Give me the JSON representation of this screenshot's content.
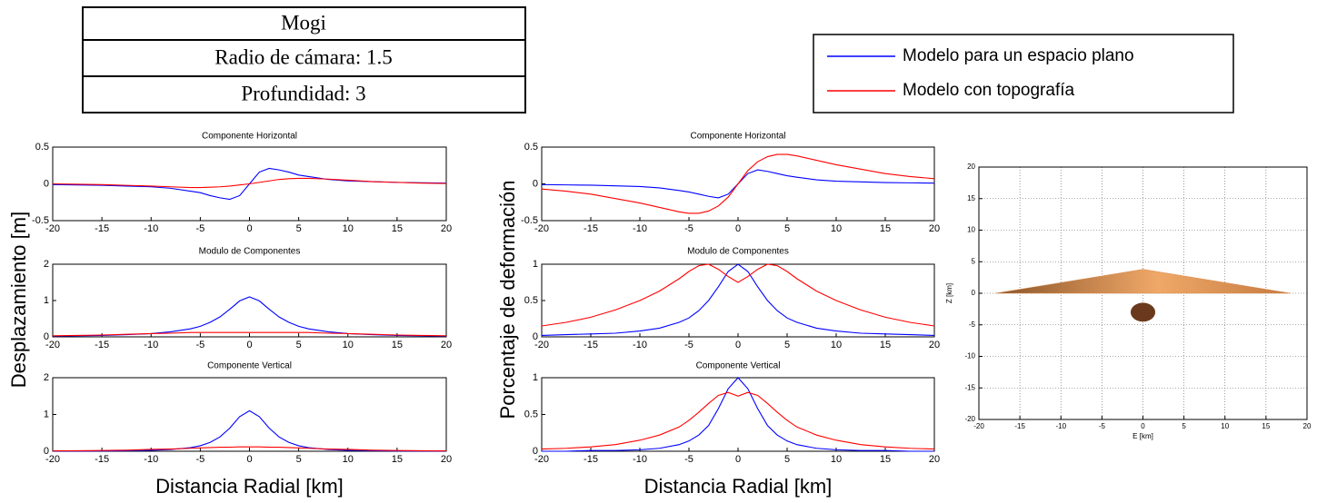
{
  "table": {
    "rows": [
      "Mogi",
      "Radio de cámara: 1.5",
      "Profundidad: 3"
    ]
  },
  "chart_data": [
    {
      "type": "line",
      "title": "Componente Horizontal",
      "x": [
        -20,
        -17.5,
        -15,
        -12.5,
        -10,
        -8,
        -6,
        -5,
        -4,
        -3,
        -2,
        -1,
        0,
        1,
        2,
        3,
        4,
        5,
        6,
        8,
        10,
        12.5,
        15,
        17.5,
        20
      ],
      "series": [
        {
          "name": "Modelo para un espacio plano",
          "color": "#0000ff",
          "values": [
            -0.01,
            -0.015,
            -0.02,
            -0.03,
            -0.04,
            -0.06,
            -0.1,
            -0.12,
            -0.16,
            -0.19,
            -0.21,
            -0.16,
            0,
            0.16,
            0.21,
            0.19,
            0.16,
            0.12,
            0.1,
            0.06,
            0.04,
            0.03,
            0.02,
            0.015,
            0.01
          ]
        },
        {
          "name": "Modelo con topografía",
          "color": "#ff0000",
          "values": [
            0,
            -0.005,
            -0.01,
            -0.02,
            -0.03,
            -0.04,
            -0.05,
            -0.05,
            -0.045,
            -0.04,
            -0.03,
            -0.015,
            0,
            0.02,
            0.04,
            0.06,
            0.07,
            0.075,
            0.075,
            0.065,
            0.05,
            0.03,
            0.02,
            0.01,
            0.005
          ]
        }
      ],
      "xlim": [
        -20,
        20
      ],
      "ylim": [
        -0.5,
        0.5
      ],
      "xticks": [
        -20,
        -15,
        -10,
        -5,
        0,
        5,
        10,
        15,
        20
      ],
      "yticks": [
        -0.5,
        0,
        0.5
      ]
    },
    {
      "type": "line",
      "title": "Modulo de Componentes",
      "ylabel": "Desplazamiento [m]",
      "x": [
        -20,
        -17.5,
        -15,
        -12.5,
        -10,
        -8,
        -6,
        -5,
        -4,
        -3,
        -2,
        -1,
        0,
        1,
        2,
        3,
        4,
        5,
        6,
        8,
        10,
        12.5,
        15,
        17.5,
        20
      ],
      "series": [
        {
          "color": "#0000ff",
          "values": [
            0.02,
            0.03,
            0.04,
            0.06,
            0.09,
            0.14,
            0.22,
            0.29,
            0.4,
            0.55,
            0.76,
            0.99,
            1.1,
            0.99,
            0.76,
            0.55,
            0.4,
            0.29,
            0.22,
            0.14,
            0.09,
            0.06,
            0.04,
            0.03,
            0.02
          ]
        },
        {
          "color": "#ff0000",
          "values": [
            0.03,
            0.04,
            0.05,
            0.07,
            0.09,
            0.1,
            0.12,
            0.12,
            0.12,
            0.12,
            0.12,
            0.12,
            0.12,
            0.12,
            0.12,
            0.12,
            0.12,
            0.12,
            0.12,
            0.1,
            0.09,
            0.07,
            0.05,
            0.04,
            0.03
          ]
        }
      ],
      "xlim": [
        -20,
        20
      ],
      "ylim": [
        0,
        2
      ],
      "xticks": [
        -20,
        -15,
        -10,
        -5,
        0,
        5,
        10,
        15,
        20
      ],
      "yticks": [
        0,
        1,
        2
      ]
    },
    {
      "type": "line",
      "title": "Componente Vertical",
      "xlabel": "Distancia Radial [km]",
      "x": [
        -20,
        -17.5,
        -15,
        -12.5,
        -10,
        -8,
        -6,
        -5,
        -4,
        -3,
        -2,
        -1,
        0,
        1,
        2,
        3,
        4,
        5,
        6,
        8,
        10,
        12.5,
        15,
        17.5,
        20
      ],
      "series": [
        {
          "color": "#0000ff",
          "values": [
            0.004,
            0.005,
            0.008,
            0.014,
            0.026,
            0.048,
            0.098,
            0.15,
            0.24,
            0.39,
            0.63,
            0.94,
            1.1,
            0.94,
            0.63,
            0.39,
            0.24,
            0.15,
            0.098,
            0.048,
            0.026,
            0.014,
            0.008,
            0.005,
            0.004
          ]
        },
        {
          "color": "#ff0000",
          "values": [
            0.01,
            0.015,
            0.02,
            0.03,
            0.05,
            0.06,
            0.08,
            0.09,
            0.1,
            0.11,
            0.11,
            0.12,
            0.12,
            0.12,
            0.11,
            0.11,
            0.1,
            0.09,
            0.08,
            0.06,
            0.05,
            0.03,
            0.02,
            0.015,
            0.01
          ]
        }
      ],
      "xlim": [
        -20,
        20
      ],
      "ylim": [
        0,
        2
      ],
      "xticks": [
        -20,
        -15,
        -10,
        -5,
        0,
        5,
        10,
        15,
        20
      ],
      "yticks": [
        0,
        1,
        2
      ]
    },
    {
      "type": "line",
      "title": "Componente Horizontal",
      "x": [
        -20,
        -17.5,
        -15,
        -12.5,
        -10,
        -8,
        -6,
        -5,
        -4,
        -3,
        -2,
        -1,
        0,
        1,
        2,
        3,
        4,
        5,
        6,
        8,
        10,
        12.5,
        15,
        17.5,
        20
      ],
      "series": [
        {
          "color": "#0000ff",
          "values": [
            -0.01,
            -0.014,
            -0.018,
            -0.027,
            -0.036,
            -0.055,
            -0.09,
            -0.11,
            -0.14,
            -0.17,
            -0.19,
            -0.14,
            0,
            0.14,
            0.19,
            0.17,
            0.14,
            0.11,
            0.09,
            0.055,
            0.036,
            0.027,
            0.018,
            0.014,
            0.01
          ]
        },
        {
          "color": "#ff0000",
          "values": [
            -0.07,
            -0.1,
            -0.14,
            -0.2,
            -0.26,
            -0.32,
            -0.38,
            -0.4,
            -0.4,
            -0.37,
            -0.3,
            -0.18,
            0,
            0.18,
            0.3,
            0.37,
            0.4,
            0.4,
            0.38,
            0.32,
            0.26,
            0.2,
            0.14,
            0.1,
            0.07
          ]
        }
      ],
      "xlim": [
        -20,
        20
      ],
      "ylim": [
        -0.5,
        0.5
      ],
      "xticks": [
        -20,
        -15,
        -10,
        -5,
        0,
        5,
        10,
        15,
        20
      ],
      "yticks": [
        -0.5,
        0,
        0.5
      ]
    },
    {
      "type": "line",
      "title": "Modulo de Componentes",
      "ylabel": "Porcentaje de deformación",
      "x": [
        -20,
        -17.5,
        -15,
        -12.5,
        -10,
        -8,
        -6,
        -5,
        -4,
        -3,
        -2,
        -1,
        0,
        1,
        2,
        3,
        4,
        5,
        6,
        8,
        10,
        12.5,
        15,
        17.5,
        20
      ],
      "series": [
        {
          "color": "#0000ff",
          "values": [
            0.02,
            0.03,
            0.04,
            0.05,
            0.08,
            0.12,
            0.2,
            0.26,
            0.36,
            0.5,
            0.69,
            0.9,
            1,
            0.9,
            0.69,
            0.5,
            0.36,
            0.26,
            0.2,
            0.12,
            0.08,
            0.05,
            0.04,
            0.03,
            0.02
          ]
        },
        {
          "color": "#ff0000",
          "values": [
            0.15,
            0.2,
            0.27,
            0.37,
            0.5,
            0.63,
            0.8,
            0.9,
            0.98,
            1,
            0.93,
            0.83,
            0.75,
            0.83,
            0.93,
            1,
            0.98,
            0.9,
            0.8,
            0.63,
            0.5,
            0.37,
            0.27,
            0.2,
            0.15
          ]
        }
      ],
      "xlim": [
        -20,
        20
      ],
      "ylim": [
        0,
        1
      ],
      "xticks": [
        -20,
        -15,
        -10,
        -5,
        0,
        5,
        10,
        15,
        20
      ],
      "yticks": [
        0,
        0.5,
        1
      ]
    },
    {
      "type": "line",
      "title": "Componente Vertical",
      "xlabel": "Distancia Radial [km]",
      "x": [
        -20,
        -17.5,
        -15,
        -12.5,
        -10,
        -8,
        -6,
        -5,
        -4,
        -3,
        -2,
        -1,
        0,
        1,
        2,
        3,
        4,
        5,
        6,
        8,
        10,
        12.5,
        15,
        17.5,
        20
      ],
      "series": [
        {
          "color": "#0000ff",
          "values": [
            0,
            0,
            0.01,
            0.01,
            0.02,
            0.04,
            0.09,
            0.14,
            0.22,
            0.35,
            0.58,
            0.85,
            1,
            0.85,
            0.58,
            0.35,
            0.22,
            0.14,
            0.09,
            0.04,
            0.02,
            0.01,
            0.01,
            0,
            0
          ]
        },
        {
          "color": "#ff0000",
          "values": [
            0.03,
            0.04,
            0.06,
            0.09,
            0.15,
            0.22,
            0.33,
            0.42,
            0.53,
            0.65,
            0.76,
            0.8,
            0.75,
            0.8,
            0.76,
            0.65,
            0.53,
            0.42,
            0.33,
            0.22,
            0.15,
            0.09,
            0.06,
            0.04,
            0.03
          ]
        }
      ],
      "xlim": [
        -20,
        20
      ],
      "ylim": [
        0,
        1
      ],
      "xticks": [
        -20,
        -15,
        -10,
        -5,
        0,
        5,
        10,
        15,
        20
      ],
      "yticks": [
        0,
        0.5,
        1
      ]
    },
    {
      "type": "section",
      "xlabel": "E [km]",
      "ylabel": "Z [km]",
      "xlim": [
        -20,
        20
      ],
      "ylim": [
        -20,
        20
      ],
      "xticks": [
        -20,
        -15,
        -10,
        -5,
        0,
        5,
        10,
        15,
        20
      ],
      "yticks": [
        -20,
        -15,
        -10,
        -5,
        0,
        5,
        10,
        15,
        20
      ],
      "grid": true,
      "topography": {
        "x": [
          -18,
          0,
          18
        ],
        "z": [
          0,
          3.8,
          0
        ],
        "color": "#d98c4e"
      },
      "chamber": {
        "x": 0,
        "z": -3,
        "radius": 1.5,
        "color": "#6b3a1e"
      }
    }
  ]
}
